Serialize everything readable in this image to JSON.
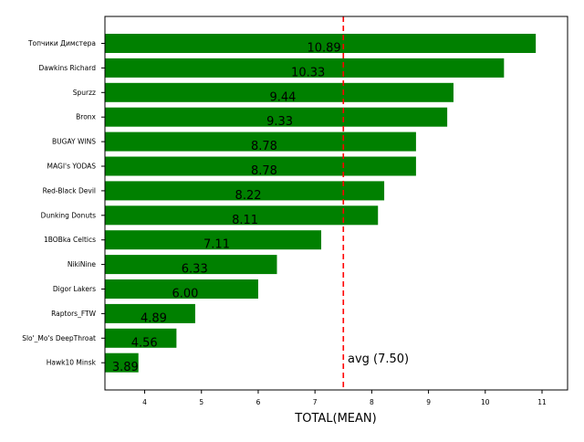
{
  "chart_data": {
    "type": "bar",
    "orientation": "horizontal",
    "categories": [
      "Топчики Димстера",
      "Dawkins Richard",
      "Spurzz",
      "Bronx",
      "BUGAY WINS",
      "MAGI's YODAS",
      "Red-Black Devil",
      "Dunking Donuts",
      "1BOBka Celtics",
      "NikiNine",
      "Digor Lakers",
      "Raptors_FTW",
      "Slo'_Mo's DeepThroat",
      "Hawk10 Minsk"
    ],
    "values": [
      10.89,
      10.33,
      9.44,
      9.33,
      8.78,
      8.78,
      8.22,
      8.11,
      7.11,
      6.33,
      6.0,
      4.89,
      4.56,
      3.89
    ],
    "value_labels": [
      "10.89",
      "10.33",
      "9.44",
      "9.33",
      "8.78",
      "8.78",
      "8.22",
      "8.11",
      "7.11",
      "6.33",
      "6.00",
      "4.89",
      "4.56",
      "3.89"
    ],
    "bar_color": "#008000",
    "xlabel": "TOTAL(MEAN)",
    "ylabel": "",
    "title": "",
    "xlim": [
      3.3,
      11.45
    ],
    "xticks": [
      4,
      5,
      6,
      7,
      8,
      9,
      10,
      11
    ],
    "reference_line": {
      "value": 7.5,
      "label": "avg (7.50)",
      "color": "#ff0000",
      "style": "dashed"
    },
    "grid": false
  }
}
